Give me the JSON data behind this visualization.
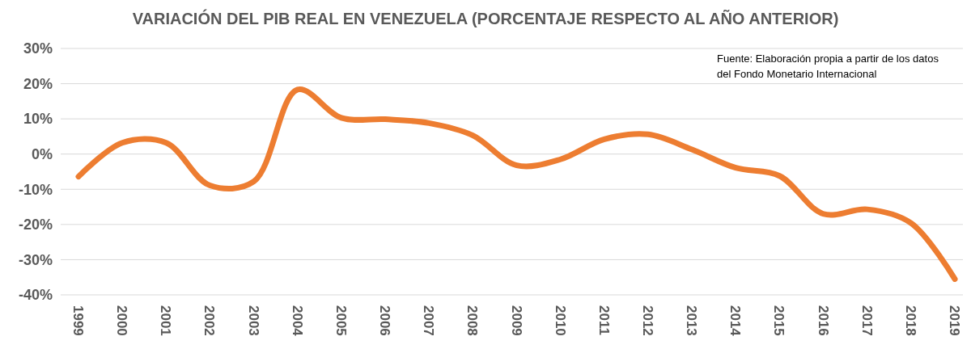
{
  "chart_data": {
    "type": "line",
    "title": "VARIACIÓN DEL PIB REAL EN VENEZUELA (PORCENTAJE RESPECTO AL AÑO ANTERIOR)",
    "categories": [
      "1999",
      "2000",
      "2001",
      "2002",
      "2003",
      "2004",
      "2005",
      "2006",
      "2007",
      "2008",
      "2009",
      "2010",
      "2011",
      "2012",
      "2013",
      "2014",
      "2015",
      "2016",
      "2017",
      "2018",
      "2019"
    ],
    "series": [
      {
        "color": "#ed7d31",
        "values": [
          -6.4,
          3.2,
          3.2,
          -8.9,
          -7.8,
          18.3,
          10.3,
          9.9,
          8.8,
          5.3,
          -3.2,
          -1.5,
          4.2,
          5.6,
          1.3,
          -3.9,
          -6.2,
          -17.0,
          -15.7,
          -19.6,
          -35.5
        ]
      }
    ],
    "ylim": [
      -40,
      30
    ],
    "yticks": [
      {
        "value": -40,
        "label": "-40%"
      },
      {
        "value": -30,
        "label": "-30%"
      },
      {
        "value": -20,
        "label": "-20%"
      },
      {
        "value": -10,
        "label": "-10%"
      },
      {
        "value": 0,
        "label": "0%"
      },
      {
        "value": 10,
        "label": "10%"
      },
      {
        "value": 20,
        "label": "20%"
      },
      {
        "value": 30,
        "label": "30%"
      }
    ],
    "grid": "y",
    "marker": "none",
    "line_style": "solid",
    "annotations": [
      "Fuente: Elaboración propia a partir de los datos del Fondo Monetario Internacional"
    ]
  }
}
